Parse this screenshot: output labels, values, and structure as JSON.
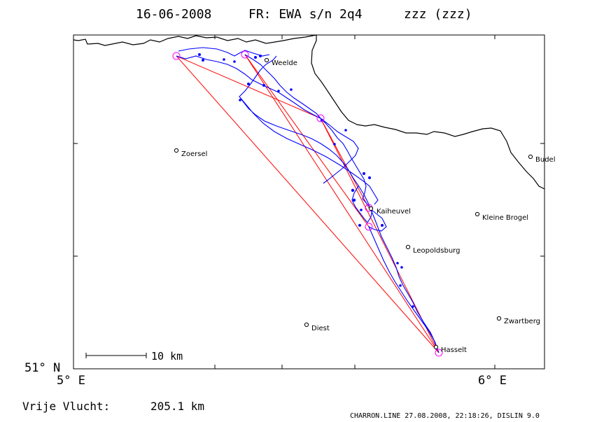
{
  "title": {
    "date": "16-06-2008",
    "flight": "FR: EWA s/n 2q4",
    "pilot": "zzz (zzz)"
  },
  "axes": {
    "lat_label": "51° N",
    "lon_left_label": "5° E",
    "lon_right_label": "6° E"
  },
  "scale_bar": {
    "label": "10 km"
  },
  "towns": [
    {
      "name": "Weelde"
    },
    {
      "name": "Zoersel"
    },
    {
      "name": "Budel"
    },
    {
      "name": "Kaiheuvel"
    },
    {
      "name": "Kleine Brogel"
    },
    {
      "name": "Leopoldsburg"
    },
    {
      "name": "Zwartberg"
    },
    {
      "name": "Diest"
    },
    {
      "name": "Hasselt"
    }
  ],
  "footer": {
    "distance_label": "Vrije Vlucht:",
    "distance_value": "205.1 km",
    "credit": "CHARRON.LINE 27.08.2008, 22:18:26, DISLIN 9.0"
  },
  "colors": {
    "track": "#0000ff",
    "task_lines": "#ff0000",
    "turnpoints": "#ff00ff",
    "border": "#000000"
  }
}
